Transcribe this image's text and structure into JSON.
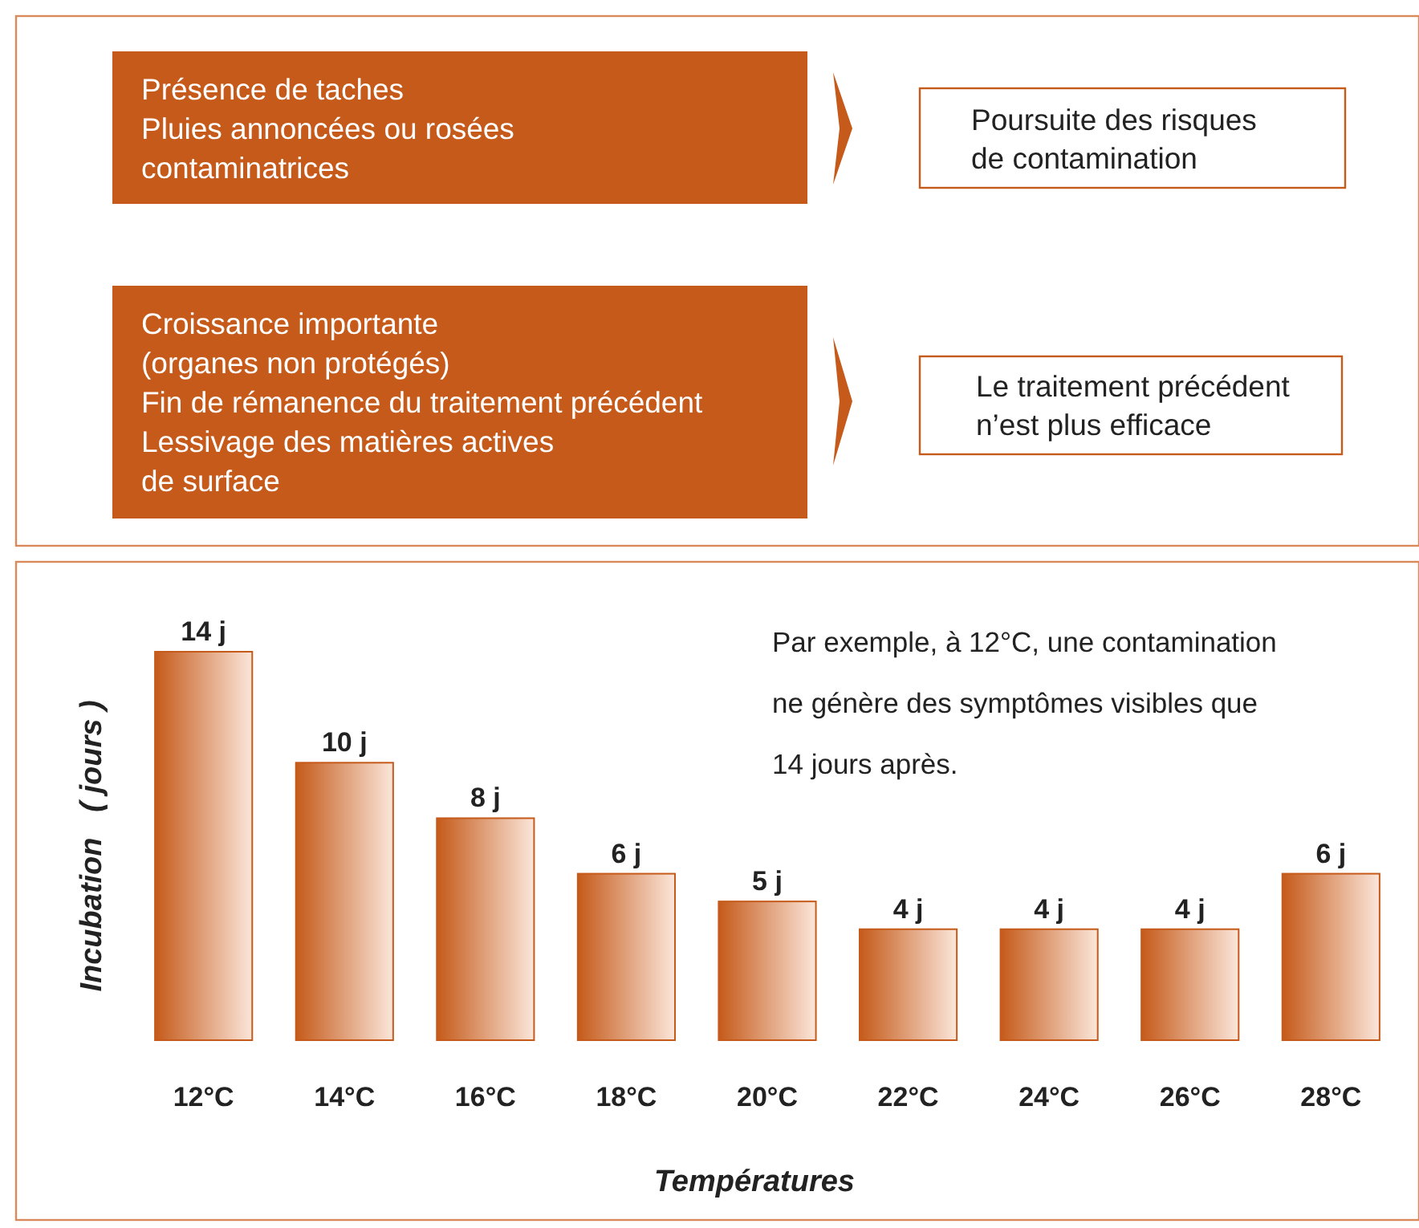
{
  "chart_data": [
    {
      "type": "other",
      "color": "#c55a1a",
      "annotations": [
        "Présence de taches\nPluies annoncées ou rosées\ncontaminatrices",
        "Poursuite des risques\nde contamination",
        "Croissance importante\n(organes non protégés)\nFin de rémanence du traitement précédent\nLessivage des matières actives\nde surface",
        "Le traitement précédent\nn’est plus efficace"
      ]
    },
    {
      "type": "bar",
      "xlabel": "Températures",
      "ylabel": "Incubation   ( jours )",
      "categories": [
        "12°C",
        "14°C",
        "16°C",
        "18°C",
        "20°C",
        "22°C",
        "24°C",
        "26°C",
        "28°C"
      ],
      "values": [
        14,
        10,
        8,
        6,
        5,
        4,
        4,
        4,
        6
      ],
      "value_labels": [
        "14 j",
        "10 j",
        "8 j",
        "6 j",
        "5 j",
        "4 j",
        "4 j",
        "4 j",
        "6 j"
      ],
      "color": "#c55a1a",
      "ylim": [
        0,
        14
      ],
      "tick_labels": "x",
      "annotations": [
        "Par exemple, à 12°C, une contamination\nne génère des symptômes visibles que\n14 jours après."
      ]
    }
  ]
}
